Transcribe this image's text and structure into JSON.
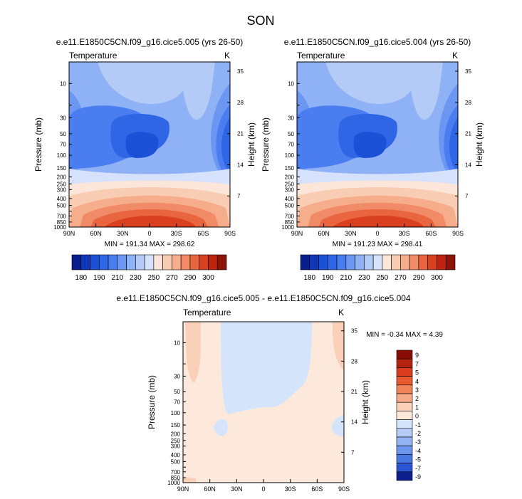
{
  "figure_title": "SON",
  "chart_data": [
    {
      "type": "heatmap",
      "title": "e.e11.E1850C5CN.f09_g16.cice5.005 (yrs 26-50)",
      "left_label": "Temperature",
      "right_label": "K",
      "ylabel": "Pressure (mb)",
      "ylabel_right": "Height (km)",
      "x_ticks": [
        "90N",
        "60N",
        "30N",
        "0",
        "30S",
        "60S",
        "90S"
      ],
      "y_ticks": [
        "10",
        "30",
        "50",
        "70",
        "100",
        "150",
        "200",
        "250",
        "300",
        "400",
        "500",
        "700",
        "850",
        "1000"
      ],
      "y_right_ticks": [
        "35",
        "28",
        "21",
        "14",
        "7"
      ],
      "stats": "MIN = 191.34  MAX = 298.62",
      "colorbar_labels": [
        "180",
        "190",
        "210",
        "230",
        "250",
        "270",
        "290",
        "300"
      ]
    },
    {
      "type": "heatmap",
      "title": "e.e11.E1850C5CN.f09_g16.cice5.004 (yrs 26-50)",
      "left_label": "Temperature",
      "right_label": "K",
      "ylabel": "Pressure (mb)",
      "ylabel_right": "Height (km)",
      "x_ticks": [
        "90N",
        "60N",
        "30N",
        "0",
        "30S",
        "60S",
        "90S"
      ],
      "y_ticks": [
        "10",
        "30",
        "50",
        "70",
        "100",
        "150",
        "200",
        "250",
        "300",
        "400",
        "500",
        "700",
        "850",
        "1000"
      ],
      "y_right_ticks": [
        "35",
        "28",
        "21",
        "14",
        "7"
      ],
      "stats": "MIN = 191.23  MAX = 298.41",
      "colorbar_labels": [
        "180",
        "190",
        "210",
        "230",
        "250",
        "270",
        "290",
        "300"
      ]
    },
    {
      "type": "heatmap",
      "title": "e.e11.E1850C5CN.f09_g16.cice5.005 - e.e11.E1850C5CN.f09_g16.cice5.004",
      "left_label": "Temperature",
      "right_label": "K",
      "ylabel": "Pressure (mb)",
      "ylabel_right": "Height (km)",
      "x_ticks": [
        "90N",
        "60N",
        "30N",
        "0",
        "30S",
        "60S",
        "90S"
      ],
      "y_ticks": [
        "10",
        "30",
        "50",
        "70",
        "100",
        "150",
        "200",
        "250",
        "300",
        "400",
        "500",
        "700",
        "850",
        "1000"
      ],
      "y_right_ticks": [
        "35",
        "28",
        "21",
        "14",
        "7"
      ],
      "stats": "MIN =  -0.34  MAX =   4.39",
      "colorbar_labels": [
        "9",
        "7",
        "5",
        "4",
        "3",
        "2",
        "1",
        "0",
        "-1",
        "-2",
        "-3",
        "-4",
        "-5",
        "-7",
        "-9"
      ]
    }
  ],
  "colors": {
    "temp_scale": [
      "#0a1f8f",
      "#0f37b8",
      "#1c50d6",
      "#2f66e6",
      "#4a7ef0",
      "#6b97f2",
      "#8fb1f5",
      "#b4cbf7",
      "#d6e2fb",
      "#fbe6d9",
      "#f9cdb4",
      "#f6ad8c",
      "#f18a66",
      "#e8653f",
      "#d8401f",
      "#bc2410",
      "#8f1208"
    ],
    "diff_scale": [
      "#8a0c06",
      "#b32310",
      "#d83c1c",
      "#ea5a32",
      "#f2845c",
      "#f7aa88",
      "#fad0b8",
      "#fde9dc",
      "#d4e4fb",
      "#b5ccf7",
      "#93b2f2",
      "#6d94ec",
      "#4a76e3",
      "#2b55d2",
      "#0c1f8c"
    ]
  }
}
